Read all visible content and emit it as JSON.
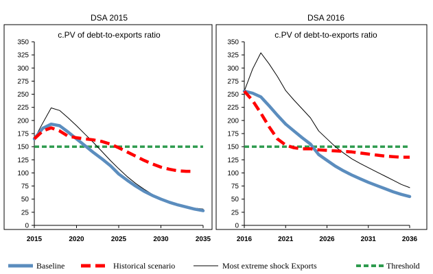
{
  "legend": {
    "baseline": "Baseline",
    "historical": "Historical scenario",
    "extreme": "Most extreme shock Exports",
    "threshold": "Threshold"
  },
  "colors": {
    "baseline": "#5b8dbe",
    "historical": "#ff0000",
    "extreme": "#000000",
    "threshold": "#2e9b4e"
  },
  "chart_data": [
    {
      "type": "line",
      "header": "DSA 2015",
      "title": "c.PV of debt-to-exports ratio",
      "xlim": [
        2015,
        2035
      ],
      "ylim": [
        0,
        350
      ],
      "xticks": [
        "2015",
        "2020",
        "2025",
        "2030",
        "2035"
      ],
      "yticks": [
        "0",
        "25",
        "50",
        "75",
        "100",
        "125",
        "150",
        "175",
        "200",
        "225",
        "250",
        "275",
        "300",
        "325",
        "350"
      ],
      "grid": false,
      "legend_position": "bottom",
      "x": [
        2015,
        2016,
        2017,
        2018,
        2019,
        2020,
        2021,
        2022,
        2023,
        2024,
        2025,
        2026,
        2027,
        2028,
        2029,
        2030,
        2031,
        2032,
        2033,
        2034,
        2035
      ],
      "series": [
        {
          "name": "Baseline",
          "values": [
            165,
            185,
            193,
            190,
            178,
            165,
            152,
            139,
            127,
            114,
            98,
            86,
            75,
            65,
            57,
            50,
            44,
            39,
            35,
            31,
            28
          ]
        },
        {
          "name": "Historical scenario",
          "values": [
            165,
            180,
            186,
            180,
            170,
            167,
            165,
            163,
            160,
            155,
            148,
            140,
            132,
            124,
            117,
            111,
            107,
            104,
            103,
            103,
            null
          ]
        },
        {
          "name": "Most extreme shock Exports",
          "values": [
            165,
            195,
            224,
            219,
            205,
            190,
            174,
            158,
            141,
            124,
            108,
            93,
            80,
            69,
            59,
            51,
            45,
            40,
            35,
            33,
            31
          ]
        },
        {
          "name": "Threshold",
          "values": [
            150,
            150,
            150,
            150,
            150,
            150,
            150,
            150,
            150,
            150,
            150,
            150,
            150,
            150,
            150,
            150,
            150,
            150,
            150,
            150,
            150
          ]
        }
      ]
    },
    {
      "type": "line",
      "header": "DSA 2016",
      "title": "c.PV of debt-to-exports ratio",
      "xlim": [
        2016,
        2036
      ],
      "ylim": [
        0,
        350
      ],
      "xticks": [
        "2016",
        "2021",
        "2026",
        "2031",
        "2036"
      ],
      "yticks": [
        "0",
        "25",
        "50",
        "75",
        "100",
        "125",
        "150",
        "175",
        "200",
        "225",
        "250",
        "275",
        "300",
        "325",
        "350"
      ],
      "grid": false,
      "legend_position": "bottom",
      "x": [
        2016,
        2017,
        2018,
        2019,
        2020,
        2021,
        2022,
        2023,
        2024,
        2025,
        2026,
        2027,
        2028,
        2029,
        2030,
        2031,
        2032,
        2033,
        2034,
        2035,
        2036
      ],
      "series": [
        {
          "name": "Baseline",
          "values": [
            256,
            252,
            245,
            228,
            210,
            193,
            180,
            167,
            155,
            135,
            124,
            113,
            104,
            96,
            89,
            82,
            76,
            70,
            64,
            59,
            55
          ]
        },
        {
          "name": "Historical scenario",
          "values": [
            256,
            238,
            214,
            188,
            165,
            153,
            148,
            146,
            146,
            144,
            143,
            142,
            141,
            140,
            138,
            136,
            134,
            132,
            131,
            130,
            130
          ]
        },
        {
          "name": "Most extreme shock Exports",
          "values": [
            256,
            298,
            329,
            308,
            284,
            257,
            239,
            222,
            205,
            180,
            165,
            150,
            138,
            127,
            118,
            110,
            102,
            94,
            86,
            78,
            72
          ]
        },
        {
          "name": "Threshold",
          "values": [
            150,
            150,
            150,
            150,
            150,
            150,
            150,
            150,
            150,
            150,
            150,
            150,
            150,
            150,
            150,
            150,
            150,
            150,
            150,
            150,
            150
          ]
        }
      ]
    }
  ]
}
